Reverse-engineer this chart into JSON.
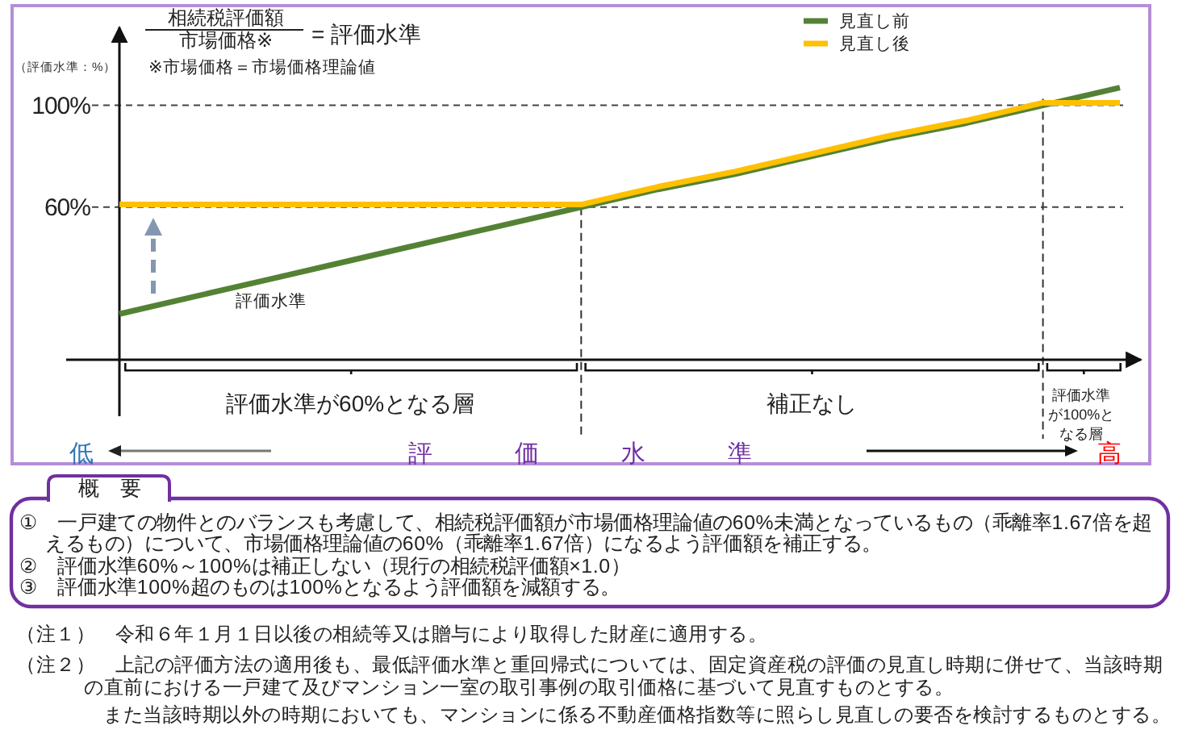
{
  "chart_data": {
    "type": "line",
    "annotations": [
      "相続税評価額",
      "市場価格※",
      "= 評価水準",
      "※市場価格＝市場価格理論値",
      "評価水準",
      "評価水準が60%となる層",
      "補正なし",
      "評価水準が100%となる層",
      "低",
      "高",
      "概　要",
      "①　一戸建ての物件とのバランスも考慮して、相続税評価額が市場価格理論値の60%未満となっているもの（乖離率1.67倍を超えるもの）について、市場価格理論値の60%（乖離率1.67倍）になるよう評価額を補正する。",
      "②　評価水準60%～100%は補正しない（現行の相続税評価額×1.0）",
      "③　評価水準100%超のものは100%となるよう評価額を減額する。",
      "（注１）　令和６年１月１日以後の相続等又は贈与により取得した財産に適用する。",
      "（注２）　上記の評価方法の適用後も、最低評価水準と重回帰式については、固定資産税の評価の見直し時期に併せて、当該時期の直前における一戸建て及びマンション一室の取引事例の取引価格に基づいて見直すものとする。",
      "また当該時期以外の時期においても、マンションに係る不動産価格指数等に照らし見直しの要否を検討するものとする。"
    ],
    "xlabel": "評価水準",
    "ylabel": "（評価水準：%）",
    "categories": [
      null,
      null,
      null,
      null,
      null,
      null,
      null,
      null,
      null,
      null,
      null,
      null,
      null,
      null
    ],
    "series": [
      {
        "name": "見直し前",
        "color": "#548235",
        "values": [
          18,
          25,
          32,
          39,
          46,
          53,
          60,
          67,
          73,
          80,
          87,
          93,
          100,
          107
        ]
      },
      {
        "name": "見直し後",
        "color": "#ffc000",
        "values": [
          61,
          61,
          61,
          61,
          61,
          61,
          61,
          68,
          74,
          81,
          88,
          94,
          101,
          101
        ]
      }
    ],
    "ylim": [
      0,
      130
    ],
    "yticks": [
      {
        "value": 60,
        "label": "60%"
      },
      {
        "value": 100,
        "label": "100%"
      }
    ],
    "grid": "y",
    "legend": "top right",
    "tick_labels": "y"
  }
}
